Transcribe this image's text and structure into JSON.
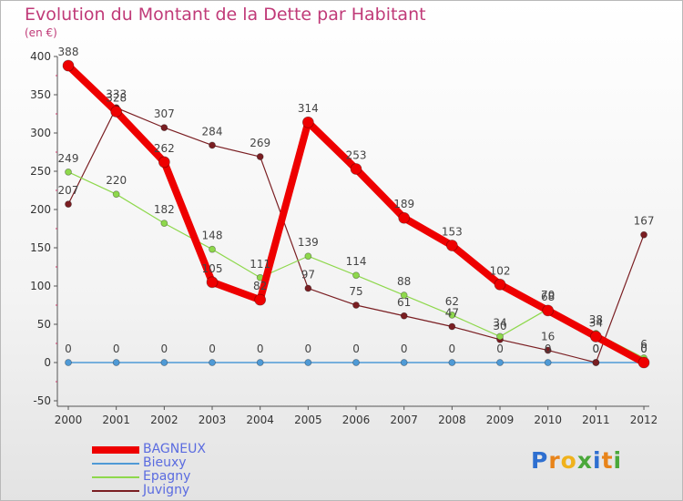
{
  "title": "Evolution du Montant de la Dette par Habitant",
  "unit": "(en €)",
  "logo": "Proxiti",
  "chart_data": {
    "type": "line",
    "x": [
      2000,
      2001,
      2002,
      2003,
      2004,
      2005,
      2006,
      2007,
      2008,
      2009,
      2010,
      2011,
      2012
    ],
    "x_tick_labels": [
      "2000",
      "2001",
      "2002",
      "2003",
      "2004",
      "2005",
      "2006",
      "2007",
      "2008",
      "2009",
      "2010",
      "2011",
      "2012"
    ],
    "ylim": [
      -50,
      400
    ],
    "y_ticks": [
      -50,
      0,
      50,
      100,
      150,
      200,
      250,
      300,
      350,
      400
    ],
    "y_tick_labels": [
      "-50",
      "0",
      "50",
      "100",
      "150",
      "200",
      "250",
      "300",
      "350",
      "400"
    ],
    "grid": false,
    "legend_position": "bottom-left",
    "series": [
      {
        "name": "BAGNEUX",
        "color": "#ee0000",
        "values": [
          388,
          328,
          262,
          105,
          82,
          314,
          253,
          189,
          153,
          102,
          68,
          34,
          0
        ]
      },
      {
        "name": "Bieuxy",
        "color": "#4f9ad6",
        "values": [
          0,
          0,
          0,
          0,
          0,
          0,
          0,
          0,
          0,
          0,
          0,
          0,
          0
        ]
      },
      {
        "name": "Epagny",
        "color": "#8ed84c",
        "values": [
          249,
          220,
          182,
          148,
          111,
          139,
          114,
          88,
          62,
          34,
          70,
          38,
          6
        ]
      },
      {
        "name": "Juvigny",
        "color": "#7a1e22",
        "values": [
          207,
          333,
          307,
          284,
          269,
          97,
          75,
          61,
          47,
          30,
          16,
          0,
          167
        ]
      }
    ]
  }
}
